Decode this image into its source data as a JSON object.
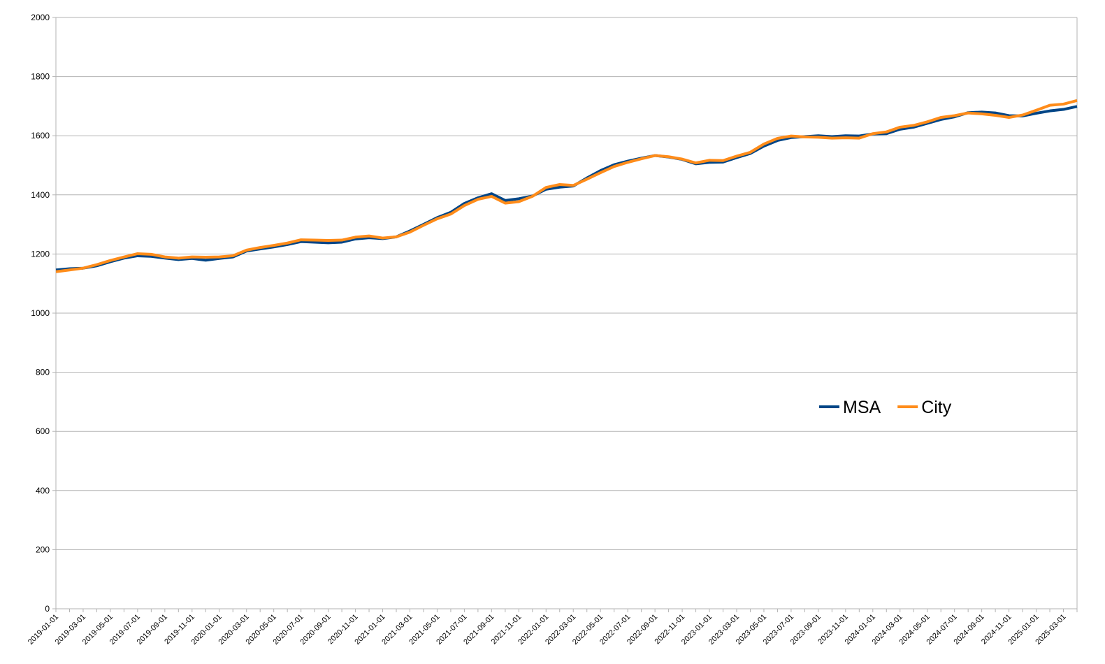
{
  "chart_data": {
    "type": "line",
    "categories": [
      "2019-01-01",
      null,
      "2019-03-01",
      null,
      "2019-05-01",
      null,
      "2019-07-01",
      null,
      "2019-09-01",
      null,
      "2019-11-01",
      null,
      "2020-01-01",
      null,
      "2020-03-01",
      null,
      "2020-05-01",
      null,
      "2020-07-01",
      null,
      "2020-09-01",
      null,
      "2020-11-01",
      null,
      "2021-01-01",
      null,
      "2021-03-01",
      null,
      "2021-05-01",
      null,
      "2021-07-01",
      null,
      "2021-09-01",
      null,
      "2021-11-01",
      null,
      "2022-01-01",
      null,
      "2022-03-01",
      null,
      "2022-05-01",
      null,
      "2022-07-01",
      null,
      "2022-09-01",
      null,
      "2022-11-01",
      null,
      "2023-01-01",
      null,
      "2023-03-01",
      null,
      "2023-05-01",
      null,
      "2023-07-01",
      null,
      "2023-09-01",
      null,
      "2023-11-01",
      null,
      "2024-01-01",
      null,
      "2024-03-01",
      null,
      "2024-05-01",
      null,
      "2024-07-01",
      null,
      "2024-09-01",
      null,
      "2024-11-01",
      null,
      "2025-01-01",
      null,
      "2025-03-01",
      null
    ],
    "series": [
      {
        "name": "MSA",
        "color": "#004586",
        "values": [
          1146,
          1150,
          1152,
          1160,
          1174,
          1186,
          1194,
          1192,
          1186,
          1181,
          1185,
          1179,
          1185,
          1190,
          1210,
          1217,
          1224,
          1232,
          1242,
          1240,
          1238,
          1240,
          1251,
          1255,
          1252,
          1258,
          1278,
          1300,
          1323,
          1341,
          1371,
          1390,
          1404,
          1381,
          1387,
          1396,
          1419,
          1426,
          1430,
          1457,
          1482,
          1502,
          1514,
          1524,
          1533,
          1528,
          1520,
          1505,
          1510,
          1511,
          1526,
          1540,
          1565,
          1584,
          1594,
          1597,
          1600,
          1597,
          1600,
          1599,
          1606,
          1607,
          1622,
          1629,
          1642,
          1655,
          1664,
          1678,
          1680,
          1677,
          1668,
          1667,
          1676,
          1684,
          1689,
          1699
        ]
      },
      {
        "name": "City",
        "color": "#ff8c1a",
        "values": [
          1140,
          1146,
          1152,
          1164,
          1178,
          1190,
          1201,
          1199,
          1190,
          1186,
          1190,
          1189,
          1190,
          1194,
          1213,
          1222,
          1229,
          1237,
          1248,
          1247,
          1246,
          1247,
          1257,
          1261,
          1254,
          1258,
          1274,
          1297,
          1319,
          1335,
          1364,
          1385,
          1395,
          1372,
          1377,
          1395,
          1425,
          1435,
          1432,
          1453,
          1475,
          1496,
          1510,
          1522,
          1533,
          1529,
          1521,
          1508,
          1517,
          1516,
          1531,
          1544,
          1572,
          1591,
          1599,
          1596,
          1595,
          1592,
          1593,
          1592,
          1607,
          1613,
          1629,
          1635,
          1647,
          1662,
          1668,
          1677,
          1674,
          1669,
          1662,
          1670,
          1686,
          1703,
          1707,
          1719
        ]
      }
    ],
    "ylim": [
      0,
      2000
    ],
    "yticks": [
      0,
      200,
      400,
      600,
      800,
      1000,
      1200,
      1400,
      1600,
      1800,
      2000
    ],
    "grid": true,
    "legend": "center-right"
  }
}
